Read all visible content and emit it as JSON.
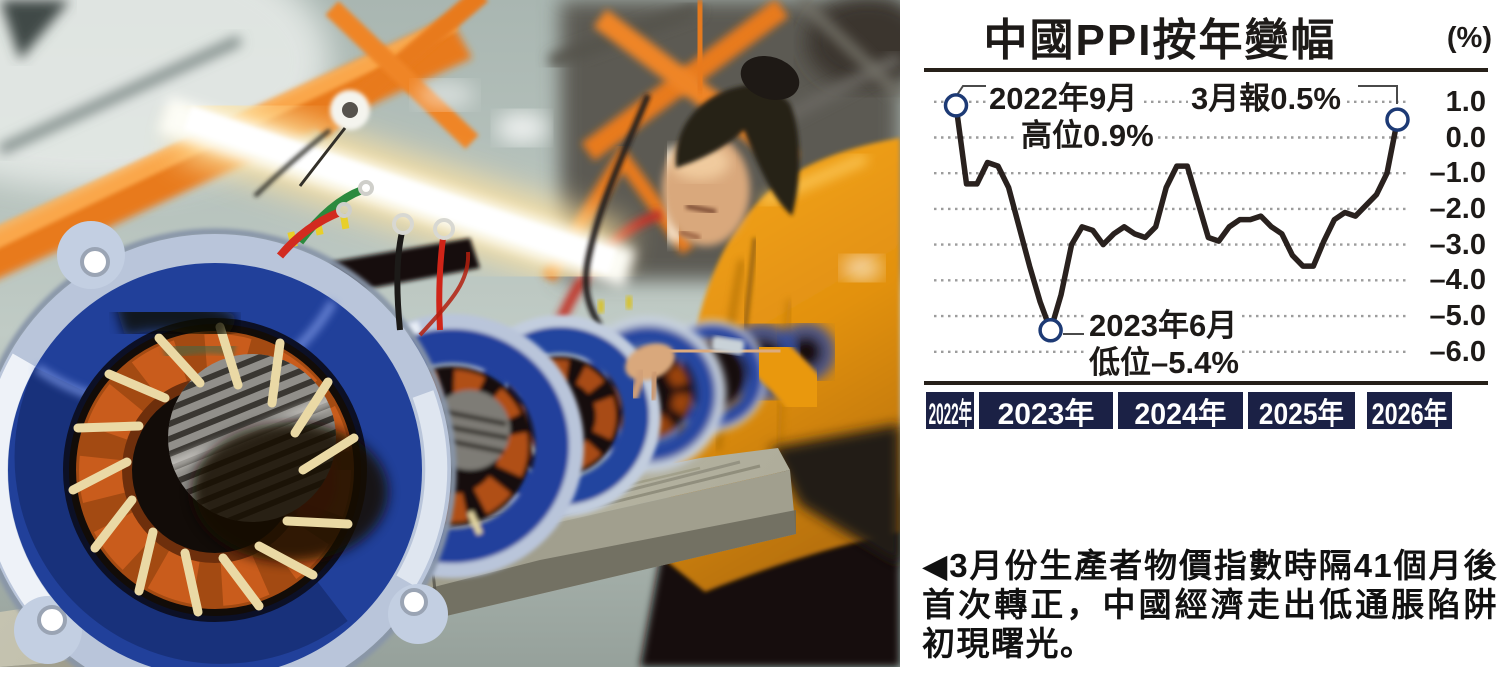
{
  "chart": {
    "title": "中國PPI按年變幅",
    "unit": "(%)",
    "annotations": {
      "peak_line1": "2022年9月",
      "peak_line2": "高位0.9%",
      "latest": "3月報0.5%",
      "trough_line1": "2023年6月",
      "trough_line2": "低位–5.4%"
    },
    "y_axis": [
      "1.0",
      "0.0",
      "–1.0",
      "–2.0",
      "–3.0",
      "–4.0",
      "–5.0",
      "–6.0"
    ],
    "x_bands": [
      "2022年",
      "2023年",
      "2024年",
      "2025年",
      "2026年"
    ],
    "colors": {
      "line": "#29211e",
      "marker_stroke": "#1d3a75",
      "band_bg": "#1b2145",
      "grid": "#9c9c9c"
    }
  },
  "chart_data": {
    "type": "line",
    "title": "中國PPI按年變幅",
    "ylabel": "(%)",
    "x": [
      "2022-09",
      "2022-10",
      "2022-11",
      "2022-12",
      "2023-01",
      "2023-02",
      "2023-03",
      "2023-04",
      "2023-05",
      "2023-06",
      "2023-07",
      "2023-08",
      "2023-09",
      "2023-10",
      "2023-11",
      "2023-12",
      "2024-01",
      "2024-02",
      "2024-03",
      "2024-04",
      "2024-05",
      "2024-06",
      "2024-07",
      "2024-08",
      "2024-09",
      "2024-10",
      "2024-11",
      "2024-12",
      "2025-01",
      "2025-02",
      "2025-03",
      "2025-04",
      "2025-05",
      "2025-06",
      "2025-07",
      "2025-08",
      "2025-09",
      "2025-10",
      "2025-11",
      "2025-12",
      "2026-01",
      "2026-02",
      "2026-03"
    ],
    "values": [
      0.9,
      -1.3,
      -1.3,
      -0.7,
      -0.8,
      -1.4,
      -2.5,
      -3.6,
      -4.6,
      -5.4,
      -4.4,
      -3.0,
      -2.5,
      -2.6,
      -3.0,
      -2.7,
      -2.5,
      -2.7,
      -2.8,
      -2.5,
      -1.4,
      -0.8,
      -0.8,
      -1.8,
      -2.8,
      -2.9,
      -2.5,
      -2.3,
      -2.3,
      -2.2,
      -2.5,
      -2.7,
      -3.3,
      -3.6,
      -3.6,
      -2.9,
      -2.3,
      -2.1,
      -2.2,
      -1.9,
      -1.6,
      -1.0,
      0.5
    ],
    "ylim": [
      -6.0,
      1.0
    ],
    "yticks": [
      1.0,
      0.0,
      -1.0,
      -2.0,
      -3.0,
      -4.0,
      -5.0,
      -6.0
    ],
    "grid": "horizontal-dotted",
    "legend_position": "none",
    "x_axis_bands": [
      "2022年",
      "2023年",
      "2024年",
      "2025年",
      "2026年"
    ],
    "marker_indices": [
      0,
      9,
      42
    ],
    "annotations": [
      {
        "text": "2022年9月高位0.9%",
        "x": "2022-09",
        "value": 0.9
      },
      {
        "text": "2023年6月低位–5.4%",
        "x": "2023-06",
        "value": -5.4
      },
      {
        "text": "3月報0.5%",
        "x": "2026-03",
        "value": 0.5
      }
    ]
  },
  "caption": {
    "text": "◀3月份生產者物價指數時隔41個月後首次轉正，中國經濟走出低通脹陷阱初現曙光。"
  },
  "photo_palette": {
    "motor_blue": "#21409a",
    "copper": "#b35317",
    "lacing_cream": "#ead9a5",
    "jacket_orange": "#f0a018",
    "beam_orange": "#e87a1f",
    "bench_wood": "#c2c0ad"
  }
}
